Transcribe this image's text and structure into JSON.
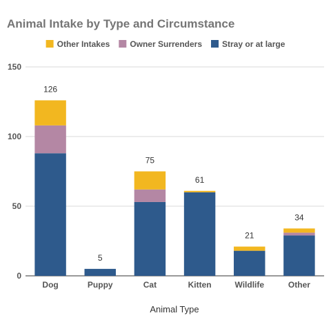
{
  "chart_data": {
    "type": "bar",
    "stacked": true,
    "title": "Animal Intake by Type and Circumstance",
    "xlabel": "Animal Type",
    "ylabel": "",
    "ylim": [
      0,
      150
    ],
    "yticks": [
      0,
      50,
      100,
      150
    ],
    "grid": true,
    "legend_position": "top",
    "categories": [
      "Dog",
      "Puppy",
      "Cat",
      "Kitten",
      "Wildlife",
      "Other"
    ],
    "series": [
      {
        "name": "Stray or at large",
        "color": "#2e5a8c",
        "values": [
          88,
          5,
          53,
          60,
          18,
          29
        ]
      },
      {
        "name": "Owner Surrenders",
        "color": "#b487a4",
        "values": [
          20,
          0,
          9,
          0,
          0,
          2
        ]
      },
      {
        "name": "Other Intakes",
        "color": "#f2b720",
        "values": [
          18,
          0,
          13,
          1,
          3,
          3
        ]
      }
    ],
    "legend_order": [
      "Other Intakes",
      "Owner Surrenders",
      "Stray or at large"
    ],
    "totals": [
      126,
      5,
      75,
      61,
      21,
      34
    ]
  }
}
